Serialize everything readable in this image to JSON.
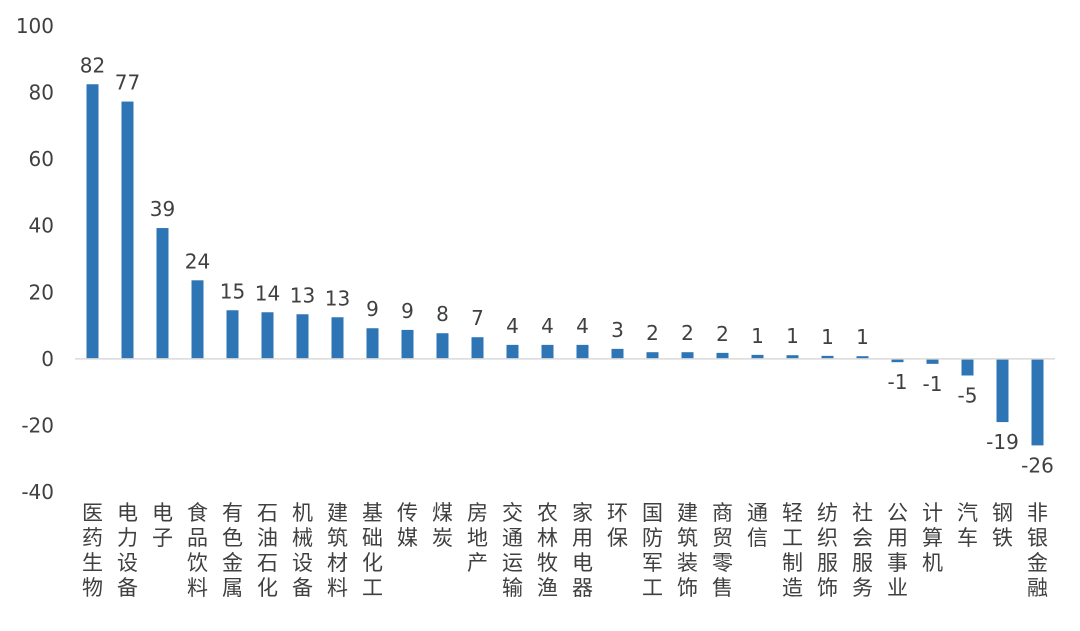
{
  "chart_data": {
    "type": "bar",
    "title": "",
    "xlabel": "",
    "ylabel": "",
    "ylim": [
      -40,
      100
    ],
    "yticks": [
      100,
      80,
      60,
      40,
      20,
      0,
      -20,
      -40
    ],
    "grid": false,
    "legend": "none",
    "colors": {
      "bar": "#2E75B6",
      "axis": "#D9D9D9",
      "text": "#404040"
    },
    "categories": [
      "医药生物",
      "电力设备",
      "电子",
      "食品饮料",
      "有色金属",
      "石油石化",
      "机械设备",
      "建筑材料",
      "基础化工",
      "传媒",
      "煤炭",
      "房地产",
      "交通运输",
      "农林牧渔",
      "家用电器",
      "环保",
      "国防军工",
      "建筑装饰",
      "商贸零售",
      "通信",
      "轻工制造",
      "纺织服饰",
      "社会服务",
      "公用事业",
      "计算机",
      "汽车",
      "钢铁",
      "非银金融"
    ],
    "values": [
      82,
      77,
      39,
      24,
      15,
      14,
      13,
      13,
      9,
      9,
      8,
      7,
      4,
      4,
      4,
      3,
      2,
      2,
      2,
      1,
      1,
      1,
      1,
      -1,
      -1,
      -5,
      -19,
      -26
    ],
    "plotted_values": [
      82.5,
      77.3,
      39.3,
      23.6,
      14.6,
      14.0,
      13.4,
      12.5,
      9.2,
      8.7,
      7.7,
      6.5,
      4.2,
      4.2,
      4.2,
      3.0,
      2.0,
      2.0,
      1.8,
      1.2,
      1.1,
      0.9,
      0.8,
      -1.0,
      -1.5,
      -5.0,
      -19.0,
      -26.0
    ]
  }
}
